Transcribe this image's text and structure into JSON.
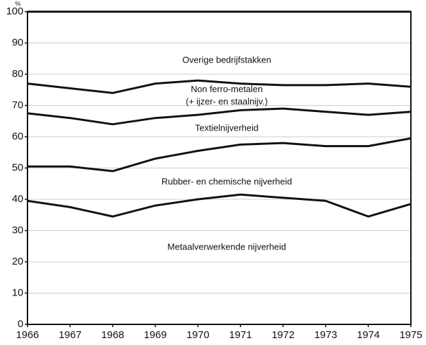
{
  "chart_data": {
    "type": "stacked-line",
    "y_label": "%",
    "x": [
      1966,
      1967,
      1968,
      1969,
      1970,
      1971,
      1972,
      1973,
      1974,
      1975
    ],
    "xlim": [
      1966,
      1975
    ],
    "xticks": [
      1966,
      1967,
      1968,
      1969,
      1970,
      1971,
      1972,
      1973,
      1974,
      1975
    ],
    "ylim": [
      0,
      100
    ],
    "yticks": [
      0,
      10,
      20,
      30,
      40,
      50,
      60,
      70,
      80,
      90,
      100
    ],
    "grid": true,
    "series": [
      {
        "name": "Metaalverwerkende nijverheid",
        "color": "#111111",
        "values": [
          39.5,
          37.5,
          34.5,
          38,
          40,
          41.5,
          40.5,
          39.5,
          34.5,
          38.5
        ]
      },
      {
        "name": "Rubber- en chemische nijverheid",
        "color": "#111111",
        "values": [
          11,
          13,
          14.5,
          15,
          15.5,
          16,
          17.5,
          17.5,
          22.5,
          21
        ]
      },
      {
        "name": "Textielnijverheid",
        "color": "#111111",
        "values": [
          17,
          15.5,
          15,
          13,
          11.5,
          11,
          11,
          11,
          10,
          8.5
        ]
      },
      {
        "name": "Non ferro-metalen\n(+ ijzer- en staalnijv.)",
        "color": "#111111",
        "values": [
          9.5,
          9.5,
          10,
          11,
          11,
          8.5,
          7.5,
          8.5,
          10,
          8
        ]
      },
      {
        "name": "Overige bedrijfstakken",
        "color": "#111111",
        "values": [
          23,
          24.5,
          26,
          23,
          22,
          23,
          23.5,
          23.5,
          23,
          24
        ]
      }
    ]
  }
}
